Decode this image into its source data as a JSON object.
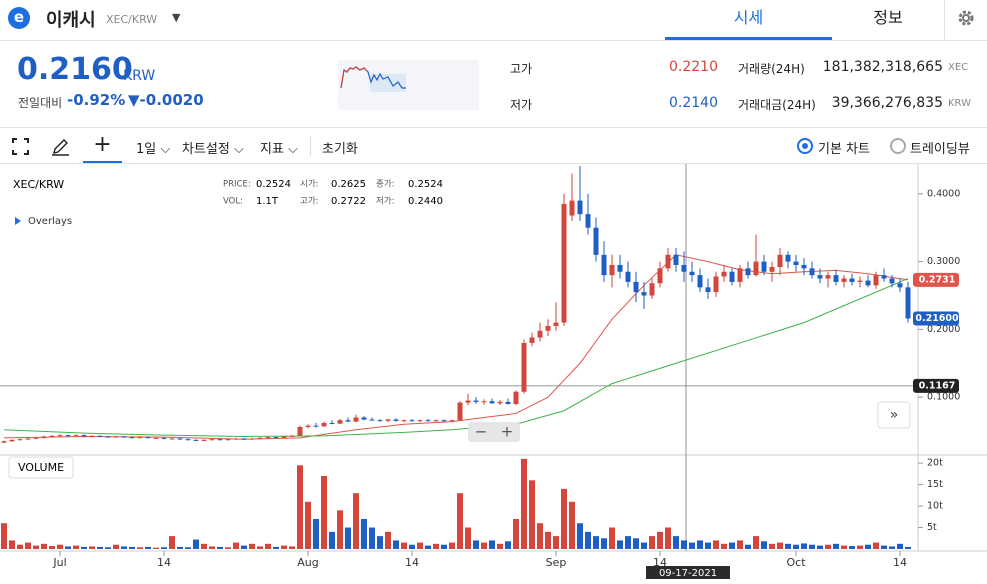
{
  "header": {
    "coin_name": "이캐시",
    "pair": "XEC/KRW",
    "tabs": [
      "시세",
      "정보"
    ]
  },
  "price_panel": {
    "price": "0.2160",
    "currency": "KRW",
    "change_label": "전일대비",
    "change_rate": "-0.92%",
    "change_amount": "▼-0.0020",
    "high_label": "고가",
    "high": "0.2210",
    "low_label": "저가",
    "low": "0.2140",
    "volume_label": "거래량(24H)",
    "volume": "181,382,318,665",
    "volume_unit": "XEC",
    "turnover_label": "거래대금(24H)",
    "turnover": "39,366,276,835",
    "turnover_unit": "KRW"
  },
  "toolbar": {
    "interval": "1일",
    "settings": "차트설정",
    "indicators": "지표",
    "reset": "초기화",
    "basic_chart": "기본 차트",
    "tradingview": "트레이딩뷰"
  },
  "chart_info": {
    "symbol": "XEC/KRW",
    "price_label": "PRICE:",
    "price": "0.2524",
    "open_label": "시가:",
    "open": "0.2625",
    "close_label": "종가:",
    "close": "0.2524",
    "vol_label": "VOL:",
    "vol": "1.1T",
    "high_label": "고가:",
    "high": "0.2722",
    "low_label": "저가:",
    "low": "0.2440",
    "overlays": "Overlays",
    "volume_pane": "VOLUME",
    "crosshair_date": "09-17-2021"
  },
  "chart_data": {
    "type": "candlestick",
    "up_color": "#d2463b",
    "down_color": "#1f5fc4",
    "categories": [
      null,
      null,
      null,
      null,
      null,
      null,
      null,
      "Jul",
      null,
      null,
      null,
      null,
      null,
      null,
      null,
      null,
      null,
      null,
      null,
      null,
      "14",
      null,
      null,
      null,
      null,
      null,
      null,
      null,
      null,
      null,
      null,
      null,
      null,
      null,
      null,
      null,
      null,
      null,
      "Aug",
      null,
      null,
      null,
      null,
      null,
      null,
      null,
      null,
      null,
      null,
      null,
      null,
      "14",
      null,
      null,
      null,
      null,
      null,
      null,
      null,
      null,
      null,
      null,
      null,
      null,
      null,
      null,
      null,
      null,
      null,
      "Sep",
      null,
      null,
      null,
      null,
      null,
      null,
      null,
      null,
      null,
      null,
      null,
      null,
      "14",
      null,
      null,
      null,
      null,
      null,
      null,
      null,
      null,
      null,
      null,
      null,
      null,
      null,
      null,
      null,
      null,
      "Oct",
      null,
      null,
      null,
      null,
      null,
      null,
      null,
      null,
      null,
      null,
      null,
      null,
      "14",
      null
    ],
    "ohlc": [
      [
        0.033,
        0.036,
        0.032,
        0.035
      ],
      [
        0.035,
        0.038,
        0.034,
        0.037
      ],
      [
        0.037,
        0.039,
        0.036,
        0.038
      ],
      [
        0.038,
        0.04,
        0.037,
        0.039
      ],
      [
        0.039,
        0.041,
        0.038,
        0.04
      ],
      [
        0.04,
        0.043,
        0.039,
        0.042
      ],
      [
        0.042,
        0.044,
        0.041,
        0.043
      ],
      [
        0.043,
        0.045,
        0.041,
        0.044
      ],
      [
        0.044,
        0.045,
        0.042,
        0.043
      ],
      [
        0.043,
        0.045,
        0.042,
        0.044
      ],
      [
        0.044,
        0.045,
        0.041,
        0.042
      ],
      [
        0.042,
        0.044,
        0.041,
        0.043
      ],
      [
        0.043,
        0.044,
        0.041,
        0.042
      ],
      [
        0.042,
        0.043,
        0.04,
        0.041
      ],
      [
        0.041,
        0.043,
        0.04,
        0.042
      ],
      [
        0.042,
        0.043,
        0.04,
        0.041
      ],
      [
        0.041,
        0.042,
        0.039,
        0.04
      ],
      [
        0.04,
        0.042,
        0.039,
        0.041
      ],
      [
        0.041,
        0.042,
        0.039,
        0.04
      ],
      [
        0.04,
        0.041,
        0.039,
        0.04
      ],
      [
        0.04,
        0.041,
        0.038,
        0.039
      ],
      [
        0.039,
        0.04,
        0.038,
        0.039
      ],
      [
        0.039,
        0.04,
        0.037,
        0.038
      ],
      [
        0.038,
        0.039,
        0.036,
        0.037
      ],
      [
        0.037,
        0.038,
        0.035,
        0.036
      ],
      [
        0.036,
        0.038,
        0.035,
        0.037
      ],
      [
        0.037,
        0.039,
        0.036,
        0.038
      ],
      [
        0.038,
        0.039,
        0.036,
        0.037
      ],
      [
        0.037,
        0.039,
        0.036,
        0.038
      ],
      [
        0.038,
        0.04,
        0.037,
        0.039
      ],
      [
        0.039,
        0.04,
        0.037,
        0.038
      ],
      [
        0.038,
        0.04,
        0.037,
        0.039
      ],
      [
        0.039,
        0.041,
        0.038,
        0.04
      ],
      [
        0.04,
        0.042,
        0.039,
        0.041
      ],
      [
        0.041,
        0.042,
        0.039,
        0.04
      ],
      [
        0.04,
        0.043,
        0.039,
        0.042
      ],
      [
        0.042,
        0.044,
        0.041,
        0.043
      ],
      [
        0.043,
        0.058,
        0.042,
        0.056
      ],
      [
        0.056,
        0.06,
        0.054,
        0.058
      ],
      [
        0.058,
        0.062,
        0.055,
        0.057
      ],
      [
        0.057,
        0.064,
        0.056,
        0.062
      ],
      [
        0.062,
        0.066,
        0.06,
        0.061
      ],
      [
        0.061,
        0.068,
        0.06,
        0.066
      ],
      [
        0.066,
        0.07,
        0.063,
        0.064
      ],
      [
        0.064,
        0.074,
        0.063,
        0.07
      ],
      [
        0.07,
        0.072,
        0.066,
        0.067
      ],
      [
        0.067,
        0.07,
        0.065,
        0.066
      ],
      [
        0.066,
        0.068,
        0.064,
        0.065
      ],
      [
        0.065,
        0.068,
        0.063,
        0.067
      ],
      [
        0.067,
        0.069,
        0.064,
        0.065
      ],
      [
        0.065,
        0.067,
        0.063,
        0.066
      ],
      [
        0.066,
        0.068,
        0.064,
        0.065
      ],
      [
        0.065,
        0.067,
        0.063,
        0.066
      ],
      [
        0.066,
        0.068,
        0.064,
        0.065
      ],
      [
        0.065,
        0.067,
        0.064,
        0.066
      ],
      [
        0.066,
        0.067,
        0.064,
        0.065
      ],
      [
        0.065,
        0.067,
        0.064,
        0.066
      ],
      [
        0.066,
        0.094,
        0.065,
        0.092
      ],
      [
        0.092,
        0.105,
        0.088,
        0.095
      ],
      [
        0.095,
        0.1,
        0.09,
        0.093
      ],
      [
        0.093,
        0.097,
        0.089,
        0.094
      ],
      [
        0.094,
        0.098,
        0.09,
        0.091
      ],
      [
        0.091,
        0.096,
        0.088,
        0.093
      ],
      [
        0.093,
        0.098,
        0.089,
        0.09
      ],
      [
        0.09,
        0.11,
        0.088,
        0.108
      ],
      [
        0.108,
        0.185,
        0.105,
        0.18
      ],
      [
        0.18,
        0.195,
        0.175,
        0.188
      ],
      [
        0.188,
        0.21,
        0.182,
        0.198
      ],
      [
        0.198,
        0.215,
        0.19,
        0.205
      ],
      [
        0.205,
        0.24,
        0.198,
        0.21
      ],
      [
        0.21,
        0.4,
        0.205,
        0.385
      ],
      [
        0.368,
        0.43,
        0.36,
        0.39
      ],
      [
        0.39,
        0.441,
        0.36,
        0.37
      ],
      [
        0.37,
        0.4,
        0.34,
        0.35
      ],
      [
        0.35,
        0.365,
        0.3,
        0.31
      ],
      [
        0.31,
        0.33,
        0.27,
        0.28
      ],
      [
        0.28,
        0.31,
        0.262,
        0.295
      ],
      [
        0.295,
        0.31,
        0.275,
        0.285
      ],
      [
        0.285,
        0.3,
        0.262,
        0.27
      ],
      [
        0.27,
        0.285,
        0.24,
        0.255
      ],
      [
        0.255,
        0.27,
        0.23,
        0.25
      ],
      [
        0.25,
        0.275,
        0.245,
        0.268
      ],
      [
        0.268,
        0.3,
        0.262,
        0.29
      ],
      [
        0.29,
        0.32,
        0.285,
        0.31
      ],
      [
        0.31,
        0.32,
        0.285,
        0.295
      ],
      [
        0.295,
        0.315,
        0.27,
        0.285
      ],
      [
        0.285,
        0.3,
        0.27,
        0.28
      ],
      [
        0.28,
        0.29,
        0.255,
        0.262
      ],
      [
        0.262,
        0.275,
        0.245,
        0.255
      ],
      [
        0.255,
        0.285,
        0.248,
        0.278
      ],
      [
        0.278,
        0.295,
        0.27,
        0.285
      ],
      [
        0.285,
        0.29,
        0.265,
        0.27
      ],
      [
        0.27,
        0.295,
        0.262,
        0.29
      ],
      [
        0.29,
        0.3,
        0.275,
        0.28
      ],
      [
        0.28,
        0.34,
        0.278,
        0.3
      ],
      [
        0.3,
        0.31,
        0.28,
        0.285
      ],
      [
        0.285,
        0.3,
        0.27,
        0.292
      ],
      [
        0.292,
        0.32,
        0.28,
        0.31
      ],
      [
        0.31,
        0.315,
        0.29,
        0.3
      ],
      [
        0.3,
        0.31,
        0.285,
        0.295
      ],
      [
        0.295,
        0.305,
        0.28,
        0.29
      ],
      [
        0.29,
        0.3,
        0.275,
        0.28
      ],
      [
        0.28,
        0.29,
        0.268,
        0.275
      ],
      [
        0.275,
        0.285,
        0.262,
        0.28
      ],
      [
        0.28,
        0.288,
        0.265,
        0.27
      ],
      [
        0.27,
        0.28,
        0.262,
        0.275
      ],
      [
        0.275,
        0.282,
        0.265,
        0.27
      ],
      [
        0.27,
        0.278,
        0.262,
        0.272
      ],
      [
        0.272,
        0.28,
        0.262,
        0.265
      ],
      [
        0.265,
        0.285,
        0.26,
        0.28
      ],
      [
        0.28,
        0.29,
        0.27,
        0.275
      ],
      [
        0.275,
        0.28,
        0.262,
        0.268
      ],
      [
        0.268,
        0.275,
        0.255,
        0.262
      ],
      [
        0.262,
        0.27,
        0.21,
        0.216
      ]
    ],
    "volume": [
      6,
      2,
      1,
      1.5,
      0.8,
      1.2,
      0.7,
      1,
      0.6,
      0.8,
      0.5,
      0.6,
      0.5,
      0.4,
      1,
      0.6,
      0.5,
      0.4,
      0.5,
      0.3,
      0.4,
      3,
      0.5,
      0.4,
      2.2,
      1.2,
      0.6,
      0.5,
      0.4,
      1.5,
      0.8,
      1.2,
      0.6,
      1.2,
      0.5,
      0.8,
      0.6,
      19.5,
      11,
      7,
      17,
      4,
      9,
      5,
      13,
      7,
      5,
      3,
      4,
      2,
      1.5,
      1,
      1.5,
      0.8,
      1.2,
      1,
      1.5,
      13,
      5,
      2,
      1.5,
      2,
      1.2,
      1.8,
      7,
      21,
      16,
      6,
      4,
      3,
      14,
      11,
      6,
      4,
      3,
      2.5,
      5,
      2,
      3,
      2.5,
      1.5,
      3,
      4,
      5,
      3,
      2,
      1.5,
      2,
      1.5,
      2,
      1.2,
      1.5,
      2,
      1,
      3,
      1.8,
      1.2,
      1.5,
      1.2,
      1,
      1.3,
      1,
      0.8,
      1,
      1.2,
      0.8,
      0.7,
      0.8,
      1,
      1.5,
      0.8,
      0.6,
      1.2,
      0.5
    ],
    "series": [
      {
        "color": "#e0554a",
        "x": [
          0,
          10,
          20,
          30,
          37,
          44,
          50,
          56,
          60,
          64,
          68,
          72,
          76,
          80,
          84,
          88,
          92,
          96,
          100,
          104,
          108,
          113
        ],
        "values": [
          0.04,
          0.042,
          0.041,
          0.038,
          0.04,
          0.052,
          0.06,
          0.064,
          0.07,
          0.076,
          0.1,
          0.15,
          0.215,
          0.265,
          0.31,
          0.3,
          0.288,
          0.282,
          0.285,
          0.287,
          0.282,
          0.2731
        ]
      },
      {
        "color": "#3fb34a",
        "x": [
          0,
          10,
          20,
          30,
          40,
          50,
          56,
          64,
          70,
          76,
          84,
          92,
          100,
          106,
          113
        ],
        "values": [
          0.052,
          0.047,
          0.044,
          0.042,
          0.043,
          0.048,
          0.052,
          0.06,
          0.08,
          0.12,
          0.15,
          0.18,
          0.21,
          0.24,
          0.275
        ]
      }
    ],
    "ylim": [
      0.0147,
      0.441
    ],
    "yticks": [
      {
        "value": 0.1,
        "label": "0.1000"
      },
      {
        "value": 0.2,
        "label": "0.2000"
      },
      {
        "value": 0.3,
        "label": "0.3000"
      },
      {
        "value": 0.4,
        "label": "0.4000"
      }
    ],
    "y2lim": [
      0,
      21.9
    ],
    "y2ticks": [
      {
        "value": 5,
        "label": "5t"
      },
      {
        "value": 10,
        "label": "10t"
      },
      {
        "value": 15,
        "label": "15t"
      },
      {
        "value": 20,
        "label": "20t"
      }
    ],
    "price_tags": [
      {
        "value": 0.2731,
        "color": "#e0554a"
      },
      {
        "value": 0.216,
        "label": "0.21600",
        "color": "#1f5fc4"
      },
      {
        "value": 0.1167,
        "color": "#222222"
      }
    ],
    "crosshair_value": 0.1167
  }
}
